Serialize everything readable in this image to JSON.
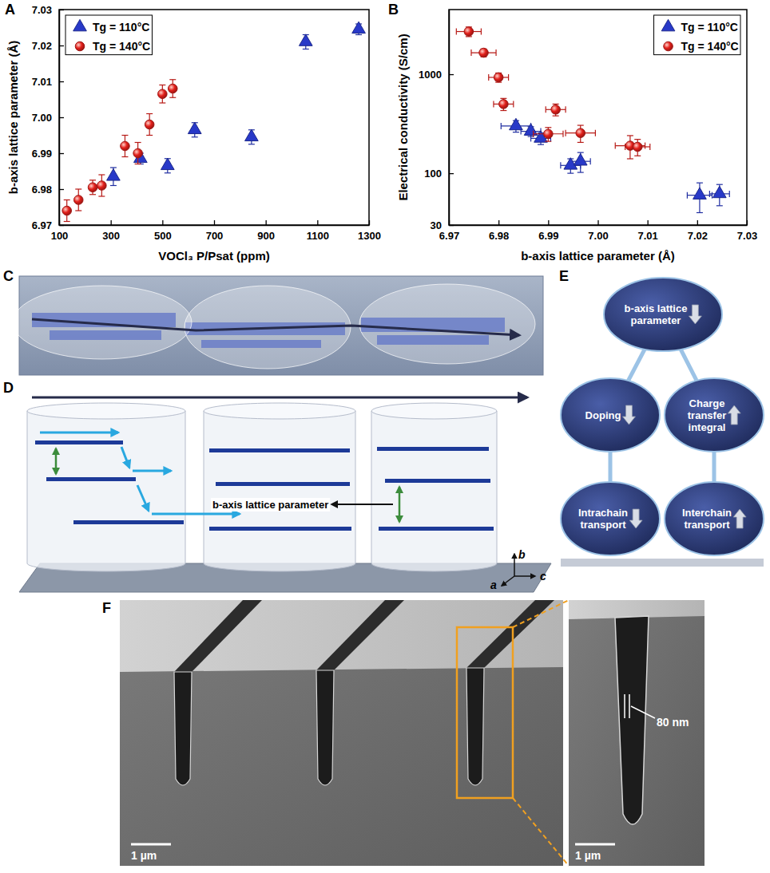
{
  "panel_labels": [
    "A",
    "B",
    "C",
    "D",
    "E",
    "F"
  ],
  "chart_data": [
    {
      "type": "scatter",
      "x_label": "VOCl₃ P/Psat (ppm)",
      "y_label": "b-axis lattice parameter (Å)",
      "xlim": [
        100,
        1300
      ],
      "xticks": [
        100,
        300,
        500,
        700,
        900,
        1100,
        1300
      ],
      "ylim": [
        6.97,
        7.03
      ],
      "yticks": [
        6.97,
        6.98,
        6.99,
        {
          "value": 7,
          "label": "7.00"
        },
        7.01,
        7.02,
        7.03
      ],
      "legend": "upper left",
      "series": [
        {
          "name": "Tg = 110°C",
          "color": "#2839c8",
          "marker": "triangle",
          "x": [
            310,
            415,
            520,
            625,
            845,
            1055,
            1260
          ],
          "values": [
            6.9835,
            6.9885,
            6.9865,
            6.9965,
            6.9945,
            7.021,
            7.0245
          ],
          "y_errors": [
            0.0025,
            0.0015,
            0.002,
            0.002,
            0.002,
            0.002,
            0.0015
          ]
        },
        {
          "name": "Tg = 140°C",
          "color": "#e3201b",
          "marker": "circle",
          "x": [
            130,
            175,
            230,
            265,
            355,
            405,
            450,
            500,
            540
          ],
          "values": [
            6.974,
            6.977,
            6.9805,
            6.981,
            6.992,
            6.99,
            6.998,
            7.0065,
            7.008
          ],
          "y_errors": [
            0.003,
            0.003,
            0.002,
            0.003,
            0.003,
            0.003,
            0.003,
            0.0025,
            0.0025
          ]
        }
      ]
    },
    {
      "type": "scatter",
      "x_label": "b-axis lattice parameter (Å)",
      "y_label": "Electrical conductivity (S/cm)",
      "log": "y",
      "xlim": [
        6.97,
        7.03
      ],
      "xticks": [
        6.97,
        6.98,
        6.99,
        {
          "value": 7,
          "label": "7.00"
        },
        7.01,
        7.02,
        7.03
      ],
      "ylim": [
        30,
        4500
      ],
      "yticks": [
        30,
        100,
        1000
      ],
      "legend": "upper right",
      "series": [
        {
          "name": "Tg = 110°C",
          "color": "#2839c8",
          "marker": "triangle",
          "x": [
            6.9835,
            6.9865,
            6.9885,
            6.9945,
            6.9965,
            7.0205,
            7.0245
          ],
          "values": [
            300,
            265,
            225,
            120,
            132,
            60,
            62
          ],
          "x_errors": [
            0.003,
            0.002,
            0.002,
            0.002,
            0.002,
            0.0025,
            0.002
          ],
          "y_errors": [
            40,
            30,
            30,
            20,
            30,
            20,
            15
          ]
        },
        {
          "name": "Tg = 140°C",
          "color": "#e3201b",
          "marker": "circle",
          "x": [
            6.974,
            6.977,
            6.98,
            6.981,
            6.9915,
            6.99,
            6.9965,
            7.0065,
            7.008
          ],
          "values": [
            2700,
            1650,
            930,
            500,
            440,
            250,
            255,
            190,
            185
          ],
          "x_errors": [
            0.0025,
            0.0025,
            0.002,
            0.002,
            0.002,
            0.003,
            0.003,
            0.003,
            0.0025
          ],
          "y_errors": [
            300,
            150,
            100,
            70,
            60,
            40,
            50,
            50,
            35
          ]
        }
      ]
    }
  ],
  "diagram_d": {
    "label": "b-axis lattice parameter",
    "axes": [
      "b",
      "a",
      "c"
    ]
  },
  "diagram_e": {
    "nodes": [
      {
        "label": "b-axis lattice parameter",
        "arrow": "down"
      },
      {
        "label": "Doping",
        "arrow": "down"
      },
      {
        "label": "Charge transfer integral",
        "arrow": "up"
      },
      {
        "label": "Intrachain transport",
        "arrow": "down"
      },
      {
        "label": "Interchain transport",
        "arrow": "up"
      }
    ]
  },
  "image_f": {
    "scale_bar": "1 µm",
    "inset_scale_bar": "1 µm",
    "width_label": "80 nm"
  }
}
